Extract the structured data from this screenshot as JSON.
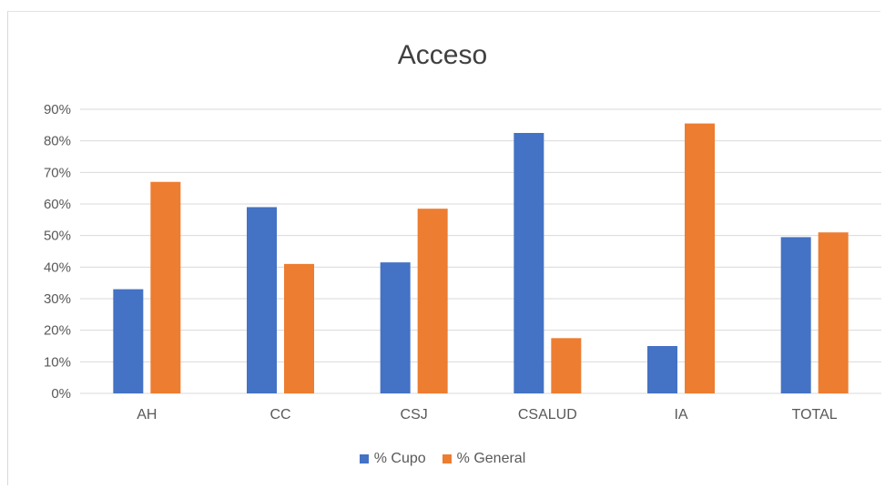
{
  "colors": {
    "cupo": "#4472C4",
    "general": "#ED7D31",
    "grid": "#d9d9d9",
    "text": "#595959"
  },
  "chart_data": {
    "type": "bar",
    "title": "Acceso",
    "xlabel": "",
    "ylabel": "",
    "categories": [
      "AH",
      "CC",
      "CSJ",
      "CSALUD",
      "IA",
      "TOTAL"
    ],
    "series": [
      {
        "name": "% Cupo",
        "color": "#4472C4",
        "values": [
          33,
          59,
          41.5,
          82.5,
          15,
          49.5
        ]
      },
      {
        "name": "% General",
        "color": "#ED7D31",
        "values": [
          67,
          41,
          58.5,
          17.5,
          85.5,
          51
        ]
      }
    ],
    "ylim": [
      0,
      90
    ],
    "yticks": [
      "0%",
      "10%",
      "20%",
      "30%",
      "40%",
      "50%",
      "60%",
      "70%",
      "80%",
      "90%"
    ],
    "grid": true,
    "legend_position": "bottom"
  }
}
